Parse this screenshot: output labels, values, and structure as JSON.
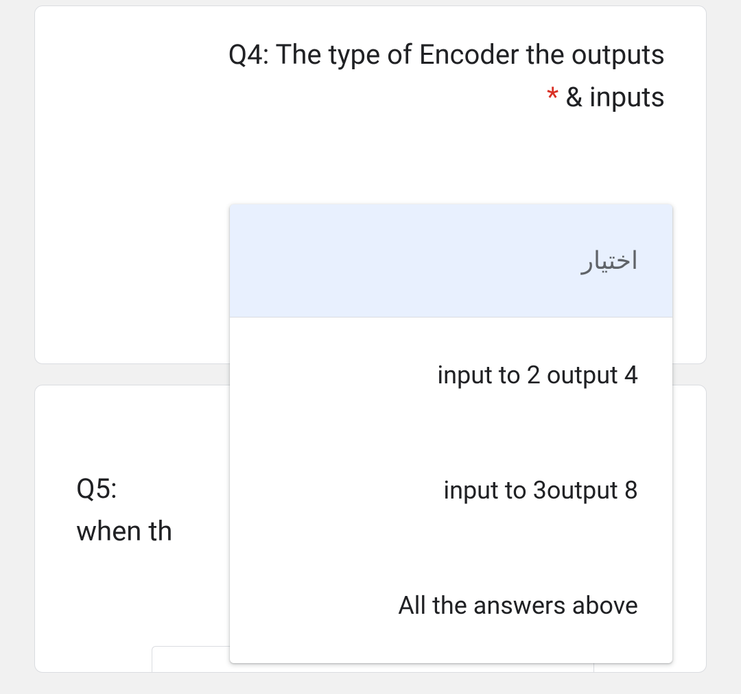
{
  "questions": {
    "q4": {
      "title_line1": "Q4: The type of Encoder the outputs",
      "title_line2": "& inputs",
      "required_mark": "*"
    },
    "q5": {
      "title_line1": "Q5:",
      "title_line2": "when th"
    }
  },
  "dropdown": {
    "placeholder": "اختيار",
    "options": [
      "input to 2 output 4",
      "input to 3output 8",
      "All the answers above"
    ]
  },
  "colors": {
    "background": "#f1f1f1",
    "card_bg": "#ffffff",
    "card_border": "#dadce0",
    "text": "#202124",
    "placeholder": "#5f6368",
    "required": "#d93025",
    "selected_bg": "#e8f0fe"
  }
}
